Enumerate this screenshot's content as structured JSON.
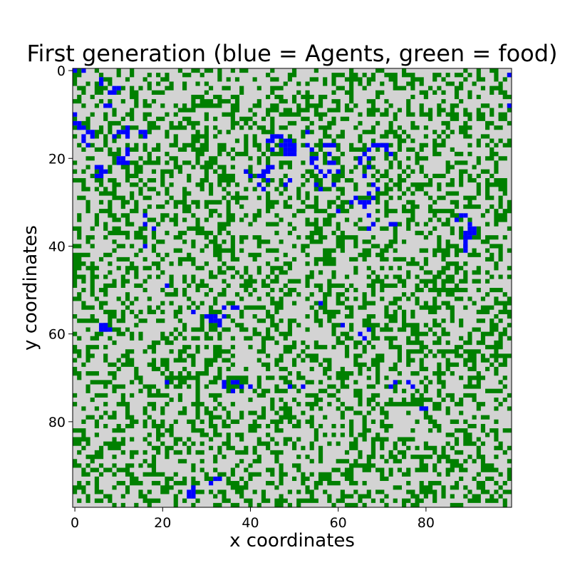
{
  "chart_data": {
    "type": "heatmap",
    "title": "First generation (blue = Agents, green = food)",
    "xlabel": "x coordinates",
    "ylabel": "y coordinates",
    "grid_size": [
      100,
      100
    ],
    "xlim": [
      0,
      99
    ],
    "ylim": [
      99,
      0
    ],
    "x_ticks": [
      0,
      20,
      40,
      60,
      80
    ],
    "y_ticks": [
      0,
      20,
      40,
      60,
      80
    ],
    "grid": false,
    "categories": [
      {
        "name": "empty",
        "color": "#d3d3d3"
      },
      {
        "name": "food",
        "color": "#008000"
      },
      {
        "name": "agent",
        "color": "#0000ff"
      }
    ],
    "food_fraction": 0.35,
    "food_seed": 12345,
    "agents": [
      [
        0,
        0
      ],
      [
        2,
        0
      ],
      [
        99,
        1
      ],
      [
        6,
        2
      ],
      [
        6,
        3
      ],
      [
        9,
        4
      ],
      [
        10,
        4
      ],
      [
        8,
        5
      ],
      [
        9,
        5
      ],
      [
        8,
        8
      ],
      [
        7,
        8
      ],
      [
        0,
        10
      ],
      [
        0,
        12
      ],
      [
        1,
        12
      ],
      [
        1,
        13
      ],
      [
        2,
        13
      ],
      [
        3,
        14
      ],
      [
        4,
        14
      ],
      [
        2,
        15
      ],
      [
        4,
        15
      ],
      [
        2,
        16
      ],
      [
        3,
        17
      ],
      [
        12,
        13
      ],
      [
        12,
        14
      ],
      [
        11,
        14
      ],
      [
        10,
        14
      ],
      [
        9,
        15
      ],
      [
        12,
        15
      ],
      [
        15,
        14
      ],
      [
        16,
        14
      ],
      [
        16,
        15
      ],
      [
        12,
        18
      ],
      [
        12,
        19
      ],
      [
        10,
        20
      ],
      [
        11,
        20
      ],
      [
        10,
        21
      ],
      [
        11,
        21
      ],
      [
        12,
        21
      ],
      [
        5,
        22
      ],
      [
        6,
        22
      ],
      [
        6,
        23
      ],
      [
        7,
        23
      ],
      [
        5,
        24
      ],
      [
        6,
        24
      ],
      [
        99,
        8
      ],
      [
        45,
        15
      ],
      [
        46,
        15
      ],
      [
        47,
        15
      ],
      [
        44,
        16
      ],
      [
        45,
        16
      ],
      [
        48,
        16
      ],
      [
        49,
        16
      ],
      [
        47,
        17
      ],
      [
        48,
        17
      ],
      [
        49,
        17
      ],
      [
        50,
        17
      ],
      [
        48,
        18
      ],
      [
        49,
        18
      ],
      [
        50,
        18
      ],
      [
        48,
        19
      ],
      [
        49,
        19
      ],
      [
        50,
        19
      ],
      [
        45,
        18
      ],
      [
        53,
        14
      ],
      [
        53,
        17
      ],
      [
        54,
        18
      ],
      [
        57,
        17
      ],
      [
        58,
        17
      ],
      [
        59,
        17
      ],
      [
        54,
        20
      ],
      [
        55,
        20
      ],
      [
        58,
        19
      ],
      [
        54,
        21
      ],
      [
        55,
        22
      ],
      [
        58,
        21
      ],
      [
        59,
        21
      ],
      [
        56,
        23
      ],
      [
        57,
        24
      ],
      [
        58,
        23
      ],
      [
        60,
        23
      ],
      [
        44,
        22
      ],
      [
        45,
        22
      ],
      [
        43,
        23
      ],
      [
        44,
        23
      ],
      [
        42,
        24
      ],
      [
        43,
        24
      ],
      [
        44,
        25
      ],
      [
        42,
        26
      ],
      [
        43,
        27
      ],
      [
        39,
        23
      ],
      [
        40,
        24
      ],
      [
        49,
        25
      ],
      [
        48,
        26
      ],
      [
        55,
        26
      ],
      [
        56,
        27
      ],
      [
        59,
        26
      ],
      [
        68,
        17
      ],
      [
        69,
        17
      ],
      [
        70,
        17
      ],
      [
        71,
        17
      ],
      [
        67,
        18
      ],
      [
        71,
        18
      ],
      [
        72,
        19
      ],
      [
        66,
        19
      ],
      [
        65,
        20
      ],
      [
        67,
        20
      ],
      [
        65,
        21
      ],
      [
        67,
        22
      ],
      [
        66,
        24
      ],
      [
        68,
        26
      ],
      [
        69,
        27
      ],
      [
        67,
        28
      ],
      [
        68,
        29
      ],
      [
        66,
        30
      ],
      [
        67,
        30
      ],
      [
        66,
        31
      ],
      [
        64,
        29
      ],
      [
        63,
        30
      ],
      [
        65,
        30
      ],
      [
        60,
        32
      ],
      [
        67,
        33
      ],
      [
        68,
        35
      ],
      [
        67,
        36
      ],
      [
        72,
        35
      ],
      [
        73,
        35
      ],
      [
        88,
        33
      ],
      [
        89,
        33
      ],
      [
        87,
        34
      ],
      [
        90,
        35
      ],
      [
        90,
        36
      ],
      [
        91,
        36
      ],
      [
        89,
        37
      ],
      [
        90,
        37
      ],
      [
        91,
        37
      ],
      [
        89,
        38
      ],
      [
        90,
        38
      ],
      [
        89,
        39
      ],
      [
        89,
        40
      ],
      [
        89,
        41
      ],
      [
        16,
        33
      ],
      [
        16,
        35
      ],
      [
        18,
        36
      ],
      [
        16,
        40
      ],
      [
        21,
        49
      ],
      [
        34,
        54
      ],
      [
        30,
        56
      ],
      [
        31,
        56
      ],
      [
        32,
        56
      ],
      [
        34,
        56
      ],
      [
        31,
        57
      ],
      [
        32,
        57
      ],
      [
        33,
        57
      ],
      [
        33,
        58
      ],
      [
        27,
        55
      ],
      [
        36,
        54
      ],
      [
        37,
        54
      ],
      [
        56,
        53
      ],
      [
        61,
        58
      ],
      [
        65,
        60
      ],
      [
        66,
        61
      ],
      [
        67,
        59
      ],
      [
        6,
        58
      ],
      [
        7,
        58
      ],
      [
        6,
        59
      ],
      [
        7,
        59
      ],
      [
        8,
        59
      ],
      [
        21,
        71
      ],
      [
        34,
        71
      ],
      [
        36,
        71
      ],
      [
        37,
        71
      ],
      [
        34,
        72
      ],
      [
        38,
        72
      ],
      [
        40,
        72
      ],
      [
        36,
        73
      ],
      [
        49,
        72
      ],
      [
        52,
        72
      ],
      [
        73,
        71
      ],
      [
        76,
        71
      ],
      [
        72,
        72
      ],
      [
        77,
        72
      ],
      [
        79,
        77
      ],
      [
        80,
        77
      ],
      [
        32,
        93
      ],
      [
        33,
        93
      ],
      [
        31,
        94
      ],
      [
        27,
        95
      ],
      [
        26,
        96
      ],
      [
        27,
        96
      ],
      [
        26,
        97
      ],
      [
        27,
        97
      ]
    ]
  }
}
